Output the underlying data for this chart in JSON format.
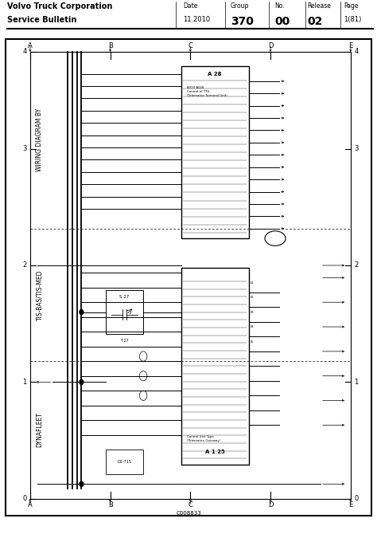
{
  "title_line1": "Volvo Truck Corporation",
  "title_line2": "Service Bulletin",
  "header_date_label": "Date",
  "header_date": "11.2010",
  "header_group_label": "Group",
  "header_group": "370",
  "header_no_label": "No.",
  "header_no": "00",
  "header_release_label": "Release",
  "header_release": "02",
  "header_page_label": "Page",
  "header_page": "1(81)",
  "col_labels": [
    "A",
    "B",
    "C",
    "D",
    "E"
  ],
  "row_labels": [
    "0",
    "1",
    "2",
    "3",
    "4"
  ],
  "label_dynafleet": "DYNAFLEET",
  "label_tis": "TIS-BAS/TIS-MED",
  "label_wiring": "WIRING DIAGRAM BY",
  "diagram_code": "C008833",
  "box_top_label": "A 28",
  "box_top_sub1": "A010 A026 A026",
  "box_top_sub2": "Control of TTU",
  "box_top_sub3": "(Telematics Terminal Unit)",
  "box_bot_label": "A 1 25",
  "box_bot_sub1": "Control Unit Type",
  "box_bot_sub2": "(Telematics Gateway)",
  "relay_label": "S 27",
  "connector_label": "D1-71S",
  "bg_color": "#ffffff",
  "wire_color": "#1a1a1a",
  "border_color": "#000000"
}
